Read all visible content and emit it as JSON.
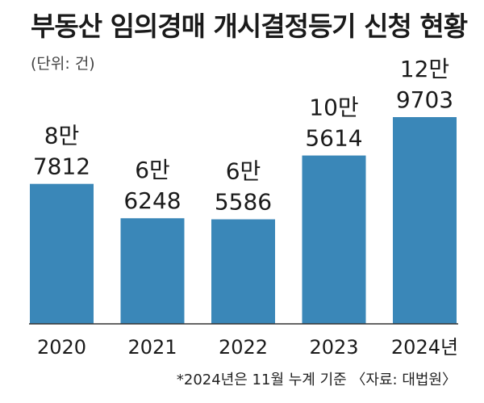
{
  "title": "부동산 임의경매 개시결정등기 신청 현황",
  "unit_label": "(단위: 건)",
  "footnote": "*2024년은 11월 누계 기준 〈자료: 대법원〉",
  "colors": {
    "bar": "#3a87b8",
    "text": "#1a1a1a",
    "axis": "#333333"
  },
  "chart_data": {
    "type": "bar",
    "categories": [
      "2020",
      "2021",
      "2022",
      "2023",
      "2024년"
    ],
    "values": [
      87812,
      66248,
      65586,
      105614,
      129703
    ],
    "value_labels": [
      [
        "8만",
        "7812"
      ],
      [
        "6만",
        "6248"
      ],
      [
        "6만",
        "5586"
      ],
      [
        "10만",
        "5614"
      ],
      [
        "12만",
        "9703"
      ]
    ],
    "xlabel": "",
    "ylabel": "",
    "grid": false,
    "legend": "none"
  }
}
